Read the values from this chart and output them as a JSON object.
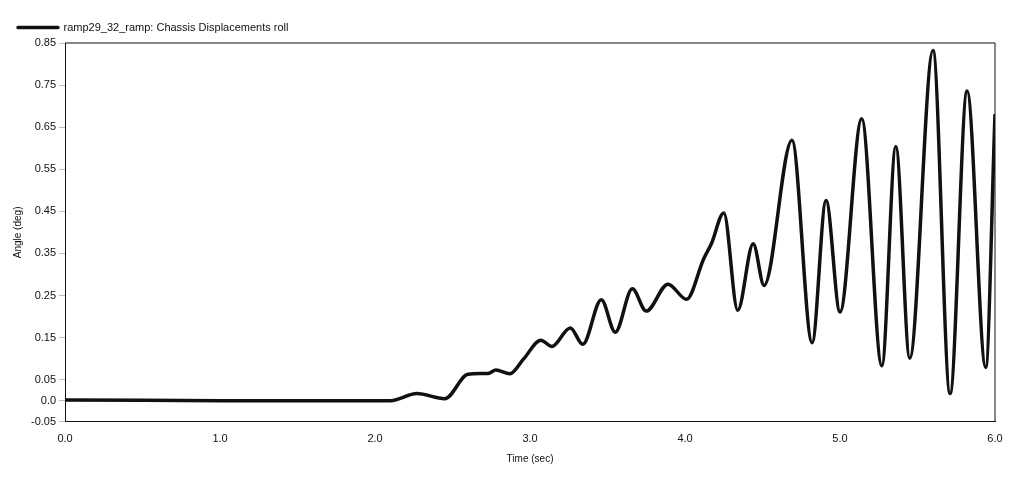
{
  "chart_data": {
    "type": "line",
    "xlabel": "Time (sec)",
    "ylabel": "Angle (deg)",
    "xlim": [
      0,
      6
    ],
    "xticks": [
      {
        "value": 0,
        "label": "0.0"
      },
      {
        "value": 1,
        "label": "1.0"
      },
      {
        "value": 2,
        "label": "2.0"
      },
      {
        "value": 3,
        "label": "3.0"
      },
      {
        "value": 4,
        "label": "4.0"
      },
      {
        "value": 5,
        "label": "5.0"
      },
      {
        "value": 6,
        "label": "6.0"
      }
    ],
    "ylim": [
      -0.05,
      0.85
    ],
    "yticks": [
      -0.05,
      {
        "value": 0,
        "label": "0.0"
      },
      0.05,
      0.15,
      0.25,
      0.35,
      0.45,
      0.55,
      0.65,
      0.75,
      0.85
    ],
    "grid": false,
    "legend": "top left",
    "marker": "none",
    "line_style": "solid",
    "series": [
      {
        "name": "ramp29_32_ramp: Chassis Displacements roll",
        "color": "#111111",
        "x": [
          0,
          0.5,
          1.0,
          1.5,
          2.0,
          2.1,
          2.27,
          2.45,
          2.6,
          2.73,
          2.78,
          2.87,
          2.96,
          3.07,
          3.14,
          3.26,
          3.34,
          3.46,
          3.55,
          3.66,
          3.75,
          3.89,
          4.01,
          4.12,
          4.17,
          4.25,
          4.34,
          4.44,
          4.51,
          4.69,
          4.82,
          4.91,
          5.0,
          5.14,
          5.27,
          5.36,
          5.45,
          5.6,
          5.71,
          5.82,
          5.94,
          6.0
        ],
        "values": [
          0.002,
          0.001,
          0.0,
          0.0,
          0.0,
          0.0,
          0.017,
          0.005,
          0.063,
          0.065,
          0.073,
          0.064,
          0.1,
          0.144,
          0.129,
          0.173,
          0.134,
          0.24,
          0.163,
          0.266,
          0.213,
          0.277,
          0.241,
          0.337,
          0.373,
          0.446,
          0.215,
          0.373,
          0.274,
          0.619,
          0.138,
          0.476,
          0.211,
          0.67,
          0.083,
          0.604,
          0.101,
          0.832,
          0.017,
          0.736,
          0.079,
          0.681
        ]
      }
    ]
  }
}
